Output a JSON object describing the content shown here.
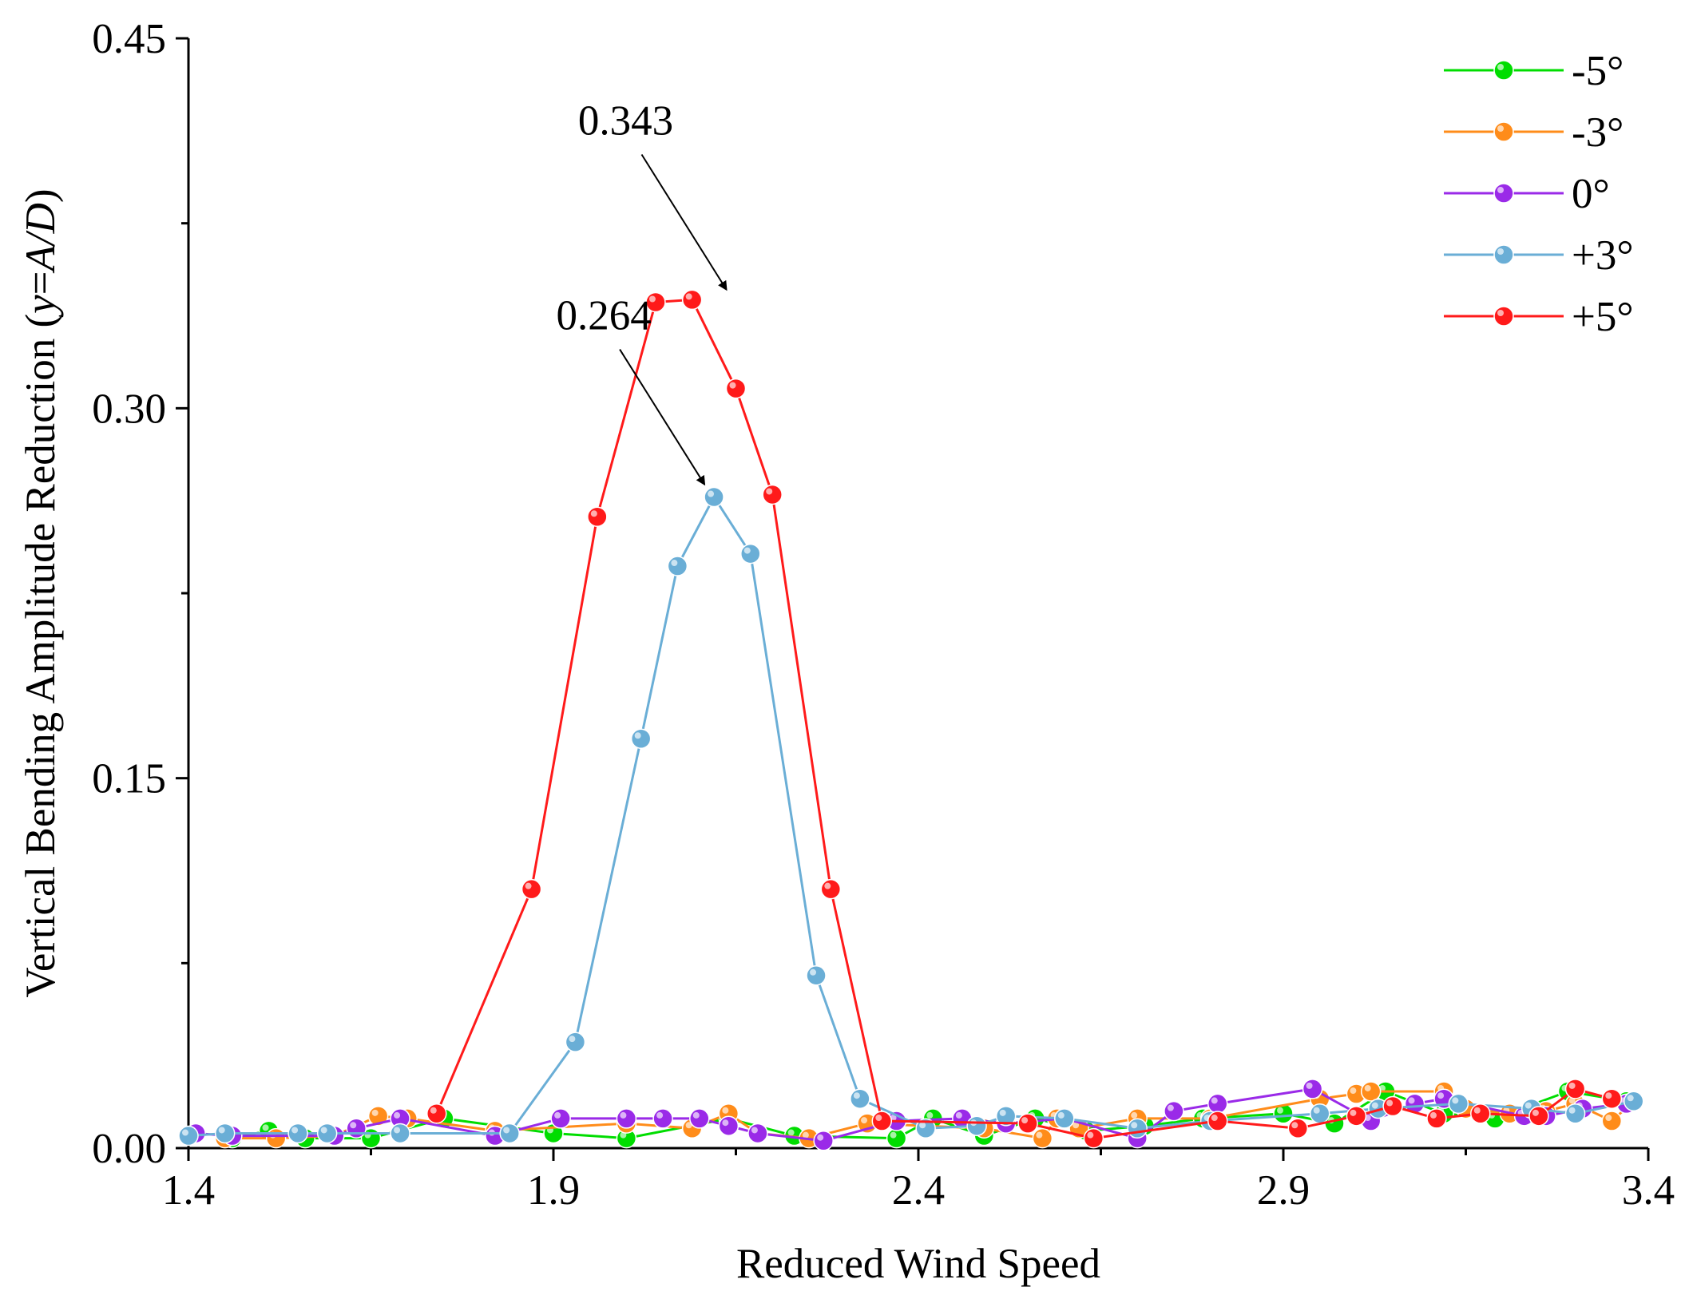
{
  "chart_data": {
    "type": "line",
    "title": "",
    "xlabel": "Reduced Wind Speed",
    "ylabel_prefix": "Vertical Bending Amplitude Reduction (",
    "ylabel_var": "y",
    "ylabel_eq": "=",
    "ylabel_expr": "A/D",
    "ylabel_suffix": ")",
    "xlim": [
      1.4,
      3.4
    ],
    "ylim": [
      0.0,
      0.45
    ],
    "xticks": [
      1.4,
      1.9,
      2.4,
      2.9,
      3.4
    ],
    "xtick_labels": [
      "1.4",
      "1.9",
      "2.4",
      "2.9",
      "3.4"
    ],
    "yticks": [
      0.0,
      0.15,
      0.3,
      0.45
    ],
    "ytick_labels": [
      "0.00",
      "0.15",
      "0.30",
      "0.45"
    ],
    "grid": false,
    "legend_position": "top-right",
    "series": [
      {
        "name": "-5°",
        "color": "#00dd00",
        "x": [
          1.46,
          1.51,
          1.56,
          1.65,
          1.75,
          1.9,
          2.0,
          2.14,
          2.23,
          2.37,
          2.42,
          2.49,
          2.56,
          2.63,
          2.71,
          2.79,
          2.9,
          2.97,
          3.04,
          3.12,
          3.19,
          3.29,
          3.35,
          3.37
        ],
        "y": [
          0.004,
          0.007,
          0.004,
          0.004,
          0.012,
          0.006,
          0.004,
          0.012,
          0.005,
          0.004,
          0.012,
          0.005,
          0.012,
          0.007,
          0.009,
          0.012,
          0.014,
          0.01,
          0.023,
          0.014,
          0.012,
          0.023,
          0.02,
          0.019
        ]
      },
      {
        "name": "-3°",
        "color": "#ff8c1a",
        "x": [
          1.45,
          1.52,
          1.6,
          1.66,
          1.7,
          1.82,
          2.0,
          2.09,
          2.14,
          2.18,
          2.25,
          2.33,
          2.49,
          2.57,
          2.59,
          2.62,
          2.7,
          2.8,
          2.95,
          3.0,
          3.02,
          3.12,
          3.15,
          3.21,
          3.26,
          3.3,
          3.35,
          3.38
        ],
        "y": [
          0.004,
          0.004,
          0.005,
          0.013,
          0.012,
          0.007,
          0.01,
          0.008,
          0.014,
          0.006,
          0.004,
          0.01,
          0.008,
          0.004,
          0.012,
          0.008,
          0.012,
          0.012,
          0.02,
          0.022,
          0.023,
          0.023,
          0.016,
          0.014,
          0.015,
          0.018,
          0.011,
          0.019
        ]
      },
      {
        "name": "0°",
        "color": "#9a2ae8",
        "x": [
          1.41,
          1.46,
          1.6,
          1.63,
          1.69,
          1.82,
          1.91,
          2.0,
          2.05,
          2.1,
          2.14,
          2.18,
          2.27,
          2.37,
          2.46,
          2.52,
          2.6,
          2.7,
          2.75,
          2.81,
          2.94,
          3.02,
          3.08,
          3.12,
          3.23,
          3.26,
          3.31,
          3.37
        ],
        "y": [
          0.006,
          0.005,
          0.005,
          0.008,
          0.012,
          0.005,
          0.012,
          0.012,
          0.012,
          0.012,
          0.009,
          0.006,
          0.003,
          0.011,
          0.012,
          0.01,
          0.012,
          0.004,
          0.015,
          0.018,
          0.024,
          0.011,
          0.018,
          0.02,
          0.013,
          0.013,
          0.016,
          0.018
        ]
      },
      {
        "name": "+3°",
        "color": "#6aaed6",
        "x": [
          1.4,
          1.45,
          1.55,
          1.59,
          1.69,
          1.84,
          1.93,
          2.02,
          2.07,
          2.12,
          2.17,
          2.26,
          2.32,
          2.41,
          2.48,
          2.52,
          2.6,
          2.7,
          2.8,
          2.95,
          3.03,
          3.14,
          3.24,
          3.3,
          3.38
        ],
        "y": [
          0.005,
          0.006,
          0.006,
          0.006,
          0.006,
          0.006,
          0.043,
          0.166,
          0.236,
          0.264,
          0.241,
          0.07,
          0.02,
          0.008,
          0.009,
          0.013,
          0.012,
          0.008,
          0.011,
          0.014,
          0.016,
          0.018,
          0.016,
          0.014,
          0.019
        ]
      },
      {
        "name": "+5°",
        "color": "#ff1a1a",
        "x": [
          1.74,
          1.87,
          1.96,
          2.04,
          2.09,
          2.15,
          2.2,
          2.28,
          2.35,
          2.55,
          2.64,
          2.81,
          2.92,
          3.0,
          3.05,
          3.11,
          3.17,
          3.25,
          3.3,
          3.35
        ],
        "y": [
          0.014,
          0.105,
          0.256,
          0.343,
          0.344,
          0.308,
          0.265,
          0.105,
          0.011,
          0.01,
          0.004,
          0.011,
          0.008,
          0.013,
          0.017,
          0.012,
          0.014,
          0.013,
          0.024,
          0.02
        ]
      }
    ],
    "annotations": [
      {
        "text": "0.343",
        "series": "+5°",
        "x": 2.15,
        "y": 0.343
      },
      {
        "text": "0.264",
        "series": "+3°",
        "x": 2.12,
        "y": 0.264
      }
    ]
  }
}
